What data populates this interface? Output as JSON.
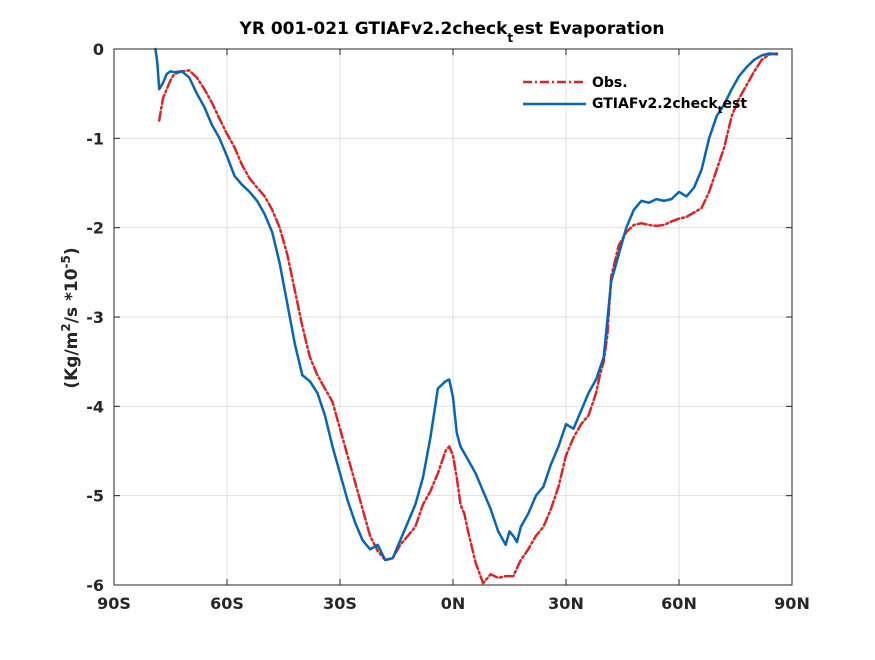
{
  "chart_data": {
    "type": "line",
    "title": {
      "prefix": "YR 001-021 GTIAFv2.2check",
      "subscript": "t",
      "suffix": "est Evaporation"
    },
    "ylabel": {
      "a": "(Kg/m",
      "a_sup": "2",
      "b": "/s *10",
      "b_sup": "-5",
      "c": ")"
    },
    "xlim": [
      -90,
      90
    ],
    "ylim": [
      -6,
      0
    ],
    "xticks": [
      {
        "value": -90,
        "label": "90S"
      },
      {
        "value": -60,
        "label": "60S"
      },
      {
        "value": -30,
        "label": "30S"
      },
      {
        "value": 0,
        "label": "0N"
      },
      {
        "value": 30,
        "label": "30N"
      },
      {
        "value": 60,
        "label": "60N"
      },
      {
        "value": 90,
        "label": "90N"
      }
    ],
    "yticks": [
      {
        "value": 0,
        "label": "0"
      },
      {
        "value": -1,
        "label": "-1"
      },
      {
        "value": -2,
        "label": "-2"
      },
      {
        "value": -3,
        "label": "-3"
      },
      {
        "value": -4,
        "label": "-4"
      },
      {
        "value": -5,
        "label": "-5"
      },
      {
        "value": -6,
        "label": "-6"
      }
    ],
    "grid": true,
    "legend_position": "top-right",
    "series": [
      {
        "name": "Obs.",
        "color": "#d62728",
        "style": "dash-dot",
        "x": [
          -78,
          -77,
          -76,
          -75,
          -74,
          -72,
          -70,
          -68,
          -66,
          -64,
          -62,
          -60,
          -58,
          -56,
          -54,
          -52,
          -50,
          -48,
          -46,
          -44,
          -42,
          -40,
          -38,
          -36,
          -34,
          -32,
          -30,
          -28,
          -26,
          -24,
          -22,
          -20,
          -18,
          -16,
          -14,
          -12,
          -10,
          -8,
          -6,
          -4,
          -2,
          -1,
          0,
          1,
          2,
          3,
          4,
          6,
          8,
          10,
          12,
          14,
          16,
          18,
          20,
          22,
          24,
          26,
          28,
          30,
          32,
          34,
          36,
          38,
          39,
          40,
          41,
          42,
          44,
          46,
          48,
          50,
          52,
          54,
          56,
          58,
          60,
          62,
          64,
          66,
          68,
          70,
          72,
          74,
          76,
          78,
          80,
          82,
          84,
          86
        ],
        "y": [
          -0.8,
          -0.55,
          -0.45,
          -0.35,
          -0.28,
          -0.25,
          -0.24,
          -0.32,
          -0.45,
          -0.6,
          -0.78,
          -0.95,
          -1.1,
          -1.3,
          -1.45,
          -1.55,
          -1.65,
          -1.8,
          -2.0,
          -2.3,
          -2.7,
          -3.1,
          -3.45,
          -3.65,
          -3.8,
          -3.95,
          -4.25,
          -4.55,
          -4.85,
          -5.15,
          -5.45,
          -5.62,
          -5.72,
          -5.7,
          -5.55,
          -5.45,
          -5.35,
          -5.1,
          -4.95,
          -4.75,
          -4.5,
          -4.45,
          -4.55,
          -4.8,
          -5.1,
          -5.2,
          -5.4,
          -5.75,
          -5.98,
          -5.88,
          -5.92,
          -5.9,
          -5.9,
          -5.72,
          -5.6,
          -5.45,
          -5.35,
          -5.15,
          -4.9,
          -4.55,
          -4.35,
          -4.2,
          -4.1,
          -3.85,
          -3.65,
          -3.5,
          -3.2,
          -2.55,
          -2.2,
          -2.05,
          -1.97,
          -1.95,
          -1.97,
          -1.98,
          -1.97,
          -1.93,
          -1.9,
          -1.88,
          -1.83,
          -1.78,
          -1.6,
          -1.35,
          -1.1,
          -0.75,
          -0.55,
          -0.4,
          -0.25,
          -0.12,
          -0.06,
          -0.05
        ]
      },
      {
        "name": "GTIAFv2.2check",
        "name_sub": "t",
        "name_suffix": "est",
        "color": "#0b64ae",
        "style": "solid",
        "x": [
          -79,
          -78.5,
          -78,
          -77,
          -76,
          -75,
          -74,
          -72,
          -70,
          -68,
          -66,
          -64,
          -62,
          -60,
          -58,
          -56,
          -54,
          -52,
          -50,
          -48,
          -46,
          -44,
          -42,
          -40,
          -38,
          -36,
          -34,
          -32,
          -30,
          -28,
          -26,
          -24,
          -22,
          -20,
          -18,
          -16,
          -14,
          -12,
          -10,
          -8,
          -6,
          -4,
          -2,
          -1,
          0,
          1,
          2,
          4,
          6,
          8,
          10,
          12,
          14,
          15,
          16,
          17,
          18,
          20,
          22,
          24,
          26,
          28,
          30,
          32,
          34,
          36,
          38,
          40,
          42,
          44,
          46,
          48,
          50,
          52,
          54,
          56,
          58,
          60,
          62,
          64,
          66,
          68,
          70,
          72,
          74,
          76,
          78,
          80,
          82,
          84,
          86
        ],
        "y": [
          0,
          -0.15,
          -0.45,
          -0.38,
          -0.28,
          -0.25,
          -0.26,
          -0.25,
          -0.32,
          -0.5,
          -0.65,
          -0.85,
          -1.0,
          -1.2,
          -1.42,
          -1.52,
          -1.6,
          -1.7,
          -1.85,
          -2.05,
          -2.4,
          -2.85,
          -3.3,
          -3.65,
          -3.72,
          -3.85,
          -4.1,
          -4.45,
          -4.75,
          -5.05,
          -5.3,
          -5.5,
          -5.6,
          -5.55,
          -5.72,
          -5.7,
          -5.5,
          -5.3,
          -5.1,
          -4.8,
          -4.35,
          -3.8,
          -3.72,
          -3.7,
          -3.9,
          -4.3,
          -4.45,
          -4.6,
          -4.75,
          -4.95,
          -5.15,
          -5.4,
          -5.55,
          -5.4,
          -5.45,
          -5.52,
          -5.35,
          -5.2,
          -5.0,
          -4.9,
          -4.65,
          -4.45,
          -4.2,
          -4.25,
          -4.05,
          -3.85,
          -3.7,
          -3.45,
          -2.6,
          -2.3,
          -2.0,
          -1.8,
          -1.7,
          -1.72,
          -1.68,
          -1.7,
          -1.68,
          -1.6,
          -1.65,
          -1.55,
          -1.35,
          -1.0,
          -0.75,
          -0.62,
          -0.45,
          -0.3,
          -0.2,
          -0.12,
          -0.07,
          -0.05,
          -0.06
        ]
      }
    ]
  }
}
